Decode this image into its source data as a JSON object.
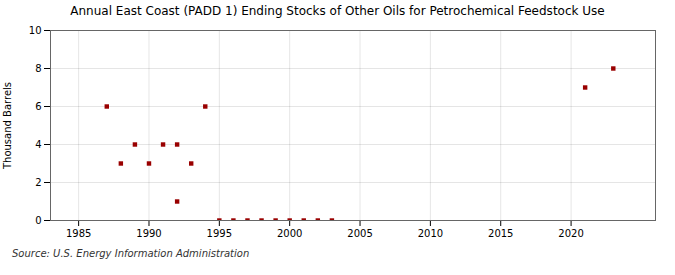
{
  "chart_data": {
    "type": "scatter",
    "title": "Annual East Coast (PADD 1) Ending Stocks of Other Oils for Petrochemical Feedstock Use",
    "ylabel": "Thousand Barrels",
    "source": "Source: U.S. Energy Information Administration",
    "x": [
      1987,
      1988,
      1989,
      1990,
      1991,
      1992,
      1992,
      1993,
      1994,
      1995,
      1996,
      1997,
      1998,
      1999,
      2000,
      2001,
      2002,
      2003,
      2021,
      2023
    ],
    "values": [
      6,
      3,
      4,
      3,
      4,
      1,
      4,
      3,
      6,
      0,
      0,
      0,
      0,
      0,
      0,
      0,
      0,
      0,
      7,
      8
    ],
    "color": "#990000",
    "marker": "square",
    "xlim": [
      1983,
      2026
    ],
    "ylim": [
      0,
      10
    ],
    "xticks": [
      1985,
      1990,
      1995,
      2000,
      2005,
      2010,
      2015,
      2020
    ],
    "yticks": [
      0,
      2,
      4,
      6,
      8,
      10
    ],
    "grid": true
  }
}
